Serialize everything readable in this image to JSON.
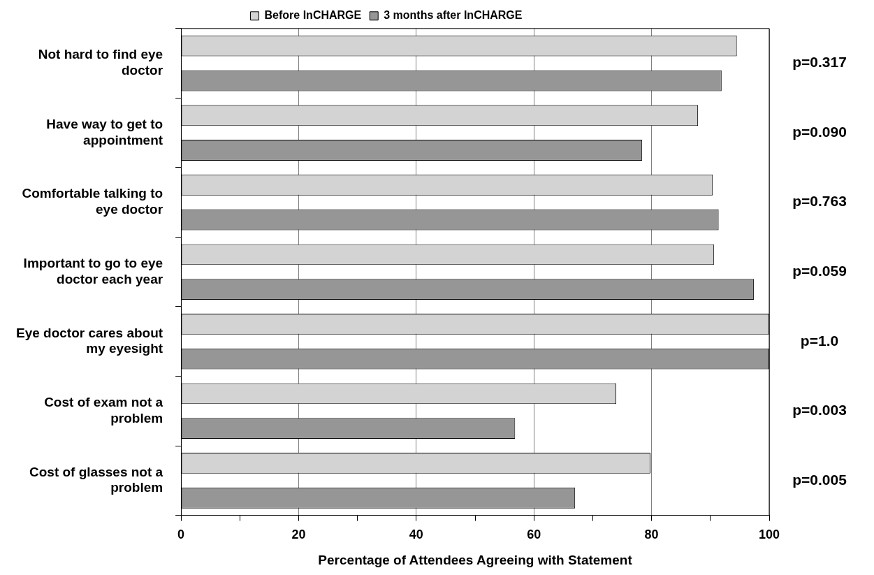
{
  "chart_data": {
    "type": "bar",
    "orientation": "horizontal",
    "categories": [
      "Not hard to find eye doctor",
      "Have way to get to appointment",
      "Comfortable talking to eye doctor",
      "Important to go to eye doctor each year",
      "Eye doctor cares about my eyesight",
      "Cost of exam not a problem",
      "Cost of glasses not a problem"
    ],
    "series": [
      {
        "name": "Before InCHARGE",
        "color": "#d3d3d3",
        "values": [
          94.5,
          87.9,
          90.4,
          90.6,
          100,
          74,
          79.8
        ]
      },
      {
        "name": "3 months after InCHARGE",
        "color": "#969696",
        "values": [
          91.9,
          78.4,
          91.4,
          97.4,
          100,
          56.8,
          67
        ]
      }
    ],
    "xlabel": "Percentage of Attendees Agreeing with Statement",
    "xlim": [
      0,
      100
    ],
    "xticks": [
      0,
      {
        "value": 10,
        "label": null
      },
      20,
      {
        "value": 30,
        "label": null
      },
      40,
      {
        "value": 50,
        "label": null
      },
      60,
      {
        "value": 70,
        "label": null
      },
      80,
      {
        "value": 90,
        "label": null
      },
      100
    ],
    "annotations": [
      "p=0.317",
      "p=0.090",
      "p=0.763",
      "p=0.059",
      "p=1.0",
      "p=0.003",
      "p=0.005"
    ],
    "grid": "x",
    "legend": "top"
  }
}
